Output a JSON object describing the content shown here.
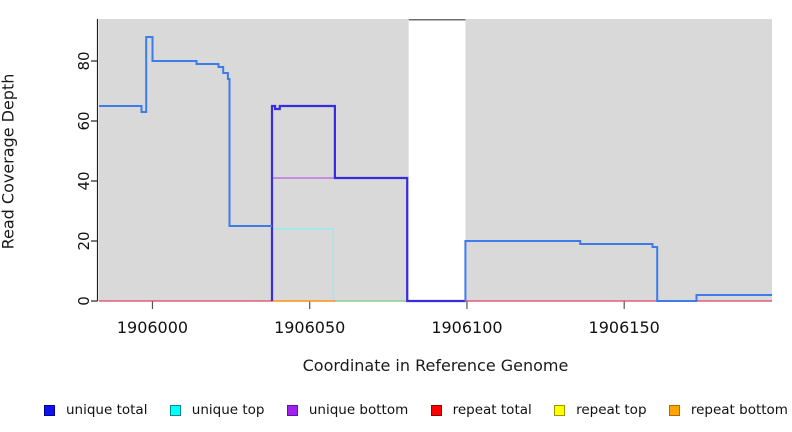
{
  "axis": {
    "x_label": "Coordinate in Reference Genome",
    "y_label": "Read Coverage Depth"
  },
  "chart_data": {
    "type": "line",
    "step": true,
    "title": "",
    "xlabel": "Coordinate in Reference Genome",
    "ylabel": "Read Coverage Depth",
    "xlim": [
      1905983,
      1906197
    ],
    "ylim": [
      0,
      94
    ],
    "grid": false,
    "legend_position": "bottom",
    "plot_bg_color": "#d9d9d9",
    "x_ticks": [
      {
        "v": 1906000,
        "label": "1906000"
      },
      {
        "v": 1906050,
        "label": "1906050"
      },
      {
        "v": 1906100,
        "label": "1906100"
      },
      {
        "v": 1906150,
        "label": "1906150"
      }
    ],
    "y_ticks": [
      {
        "v": 0,
        "label": "0"
      },
      {
        "v": 20,
        "label": "20"
      },
      {
        "v": 40,
        "label": "40"
      },
      {
        "v": 60,
        "label": "60"
      },
      {
        "v": 80,
        "label": "80"
      }
    ],
    "background_regions": [
      {
        "name": "covered-region-left",
        "x0": 1905983,
        "x1": 1906081.5,
        "color": "#d9d9d9"
      },
      {
        "name": "covered-region-right",
        "x0": 1906099.5,
        "x1": 1906197,
        "color": "#d9d9d9"
      }
    ],
    "gap_region": {
      "x0": 1906081.5,
      "x1": 1906099.5,
      "color": "#ffffff",
      "top_line_color": "#6f6f6f"
    },
    "series": [
      {
        "name": "repeat-total",
        "color": "#dd4364",
        "width": 1.2,
        "points": [
          [
            1905983,
            0
          ],
          [
            1906197,
            0
          ]
        ]
      },
      {
        "name": "unique-bottom",
        "color": "#bb79e0",
        "width": 1.4,
        "points": [
          [
            1906038,
            0
          ],
          [
            1906038,
            41
          ],
          [
            1906058.5,
            41
          ]
        ]
      },
      {
        "name": "unique-top",
        "color": "#8feeee",
        "width": 1.4,
        "points": [
          [
            1906038,
            0
          ],
          [
            1906038,
            24
          ],
          [
            1906057.5,
            24
          ],
          [
            1906057.5,
            0
          ]
        ]
      },
      {
        "name": "repeat-bottom",
        "color": "#ff9f1c",
        "width": 1.6,
        "points": [
          [
            1906038,
            0
          ],
          [
            1906057.5,
            0
          ]
        ]
      },
      {
        "name": "top-overlap-zero",
        "color": "#8cdc9c",
        "width": 1.6,
        "points": [
          [
            1906058,
            0
          ],
          [
            1906081,
            0
          ]
        ]
      },
      {
        "name": "unique-total",
        "color": "#382ddd",
        "width": 2.2,
        "points": [
          [
            1906038,
            0
          ],
          [
            1906038,
            65
          ],
          [
            1906039,
            65
          ],
          [
            1906039,
            64
          ],
          [
            1906040.5,
            64
          ],
          [
            1906040.5,
            65
          ],
          [
            1906058,
            65
          ],
          [
            1906058,
            41
          ],
          [
            1906081,
            41
          ],
          [
            1906081,
            0
          ],
          [
            1906099.5,
            0
          ]
        ]
      },
      {
        "name": "coverage-left",
        "color": "#3e7cea",
        "width": 2,
        "points": [
          [
            1905983,
            65
          ],
          [
            1905996.5,
            65
          ],
          [
            1905996.5,
            63
          ],
          [
            1905998,
            63
          ],
          [
            1905998,
            88
          ],
          [
            1906000,
            88
          ],
          [
            1906000,
            80
          ],
          [
            1906014,
            80
          ],
          [
            1906014,
            79
          ],
          [
            1906021,
            79
          ],
          [
            1906021,
            78
          ],
          [
            1906022.5,
            78
          ],
          [
            1906022.5,
            76
          ],
          [
            1906024,
            76
          ],
          [
            1906024,
            74
          ],
          [
            1906024.5,
            74
          ],
          [
            1906024.5,
            25
          ],
          [
            1906038,
            25
          ]
        ]
      },
      {
        "name": "coverage-right",
        "color": "#3e7cea",
        "width": 2,
        "points": [
          [
            1906099.5,
            0
          ],
          [
            1906099.5,
            20
          ],
          [
            1906136,
            20
          ],
          [
            1906136,
            19
          ],
          [
            1906159,
            19
          ],
          [
            1906159,
            18
          ],
          [
            1906160.5,
            18
          ],
          [
            1906160.5,
            0
          ],
          [
            1906173,
            0
          ],
          [
            1906173,
            2
          ],
          [
            1906197,
            2
          ]
        ]
      }
    ],
    "legend": [
      {
        "label": "unique total",
        "fill": "#1111ee",
        "border": "#000099"
      },
      {
        "label": "unique top",
        "fill": "#00ffff",
        "border": "#008b8b"
      },
      {
        "label": "unique bottom",
        "fill": "#a020f0",
        "border": "#6a0dad"
      },
      {
        "label": "repeat total",
        "fill": "#ff0000",
        "border": "#990000"
      },
      {
        "label": "repeat top",
        "fill": "#ffff00",
        "border": "#999900"
      },
      {
        "label": "repeat bottom",
        "fill": "#ffa500",
        "border": "#b36b00"
      }
    ]
  }
}
